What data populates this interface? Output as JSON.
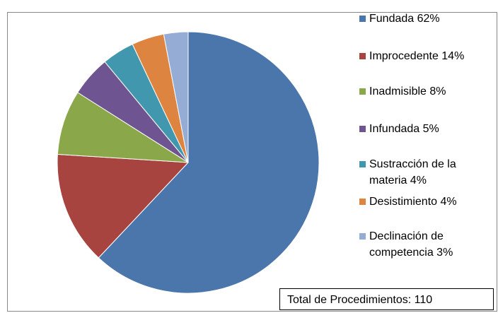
{
  "chart_data": {
    "type": "pie",
    "categories": [
      "Fundada 62%",
      "Improcedente 14%",
      "Inadmisible 8%",
      "Infundada 5%",
      "Sustracción de la materia 4%",
      "Desistimiento 4%",
      "Declinación de competencia 3%"
    ],
    "values": [
      62,
      14,
      8,
      5,
      4,
      4,
      3
    ],
    "colors": [
      "#4a76ab",
      "#a84440",
      "#8aa84a",
      "#6e5490",
      "#4197ae",
      "#dd8540",
      "#95acd5"
    ],
    "annotation": "Total de Procedimientos: 110"
  }
}
